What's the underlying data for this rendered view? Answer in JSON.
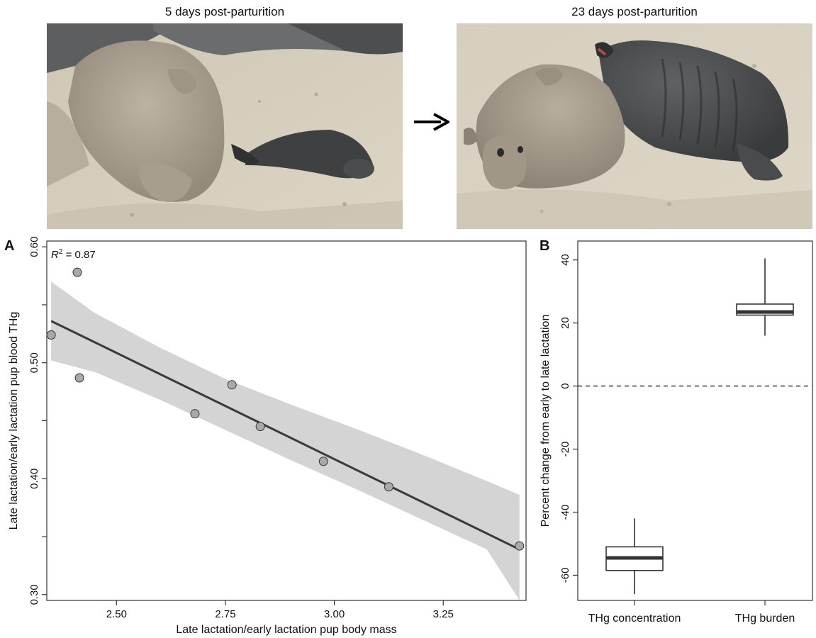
{
  "photos": {
    "left": {
      "title": "5 days post-parturition"
    },
    "right": {
      "title": "23 days post-parturition"
    },
    "arrow_icon": "right-arrow-icon"
  },
  "colors": {
    "line": "#3a3a3a",
    "band": "#d4d4d4",
    "point_fill": "#a9a9a9",
    "sand": "#d9d2c3"
  },
  "chart_data": [
    {
      "panel": "A",
      "type": "scatter",
      "annotation_prefix": "R",
      "annotation_sup": "2",
      "annotation_value": " = 0.87",
      "xlabel": "Late lactation/early lactation pup body mass",
      "ylabel": "Late lactation/early lactation pup blood THg",
      "xlim": [
        2.34,
        3.44
      ],
      "ylim": [
        0.295,
        0.605
      ],
      "xticks": [
        2.5,
        2.75,
        3.0,
        3.25
      ],
      "xtick_labels": [
        "2.50",
        "2.75",
        "3.00",
        "3.25"
      ],
      "yticks": [
        0.3,
        0.35,
        0.4,
        0.45,
        0.5,
        0.55,
        0.6
      ],
      "ytick_labels": [
        "0.30",
        "",
        "0.40",
        "",
        "0.50",
        "",
        "0.60"
      ],
      "points": [
        {
          "x": 2.35,
          "y": 0.524
        },
        {
          "x": 2.41,
          "y": 0.578
        },
        {
          "x": 2.415,
          "y": 0.487
        },
        {
          "x": 2.68,
          "y": 0.456
        },
        {
          "x": 2.765,
          "y": 0.481
        },
        {
          "x": 2.83,
          "y": 0.445
        },
        {
          "x": 2.975,
          "y": 0.415
        },
        {
          "x": 3.125,
          "y": 0.393
        },
        {
          "x": 3.425,
          "y": 0.342
        }
      ],
      "fit": {
        "x": [
          2.35,
          3.425
        ],
        "y": [
          0.536,
          0.339
        ]
      },
      "ci_band": {
        "x": [
          2.35,
          2.45,
          2.6,
          2.75,
          2.9,
          3.05,
          3.2,
          3.35,
          3.425
        ],
        "upper": [
          0.57,
          0.543,
          0.513,
          0.486,
          0.464,
          0.443,
          0.421,
          0.398,
          0.386
        ],
        "lower": [
          0.502,
          0.492,
          0.468,
          0.442,
          0.416,
          0.391,
          0.365,
          0.339,
          0.295
        ]
      },
      "grid": false
    },
    {
      "panel": "B",
      "type": "box",
      "ylabel": "Percent change from early to late lactation",
      "ylim": [
        -68,
        46
      ],
      "yticks": [
        -60,
        -40,
        -20,
        0,
        20,
        40
      ],
      "ytick_labels": [
        "-60",
        "-40",
        "-20",
        "0",
        "20",
        "40"
      ],
      "categories": [
        "THg concentration",
        "THg burden"
      ],
      "boxes": [
        {
          "name": "THg concentration",
          "min": -66,
          "q1": -58.5,
          "median": -54.5,
          "q3": -51,
          "max": -42
        },
        {
          "name": "THg burden",
          "min": 16,
          "q1": 22.5,
          "median": 23.5,
          "q3": 26,
          "max": 40.5
        }
      ],
      "reference_line": 0,
      "grid": false
    }
  ]
}
